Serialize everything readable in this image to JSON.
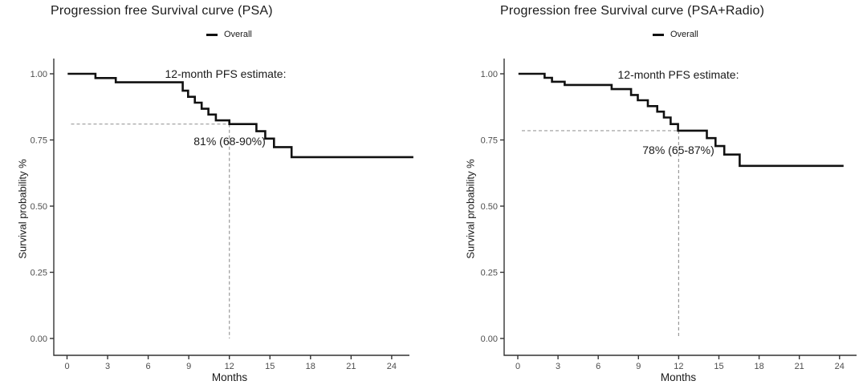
{
  "colors": {
    "curve": "#111111",
    "reference_dash": "#9a9a9a",
    "axis": "#333333",
    "tick_label": "#4d4d4d",
    "text": "#1a1a1a"
  },
  "chart_data": [
    {
      "type": "line",
      "step": true,
      "title": "Progression free Survival curve (PSA)",
      "legend": [
        {
          "label": "Overall",
          "color": "#111111"
        }
      ],
      "xlabel": "Months",
      "ylabel": "Survival probability %",
      "x_ticks": [
        0,
        3,
        6,
        9,
        12,
        15,
        18,
        21,
        24
      ],
      "y_ticks": [
        {
          "label": "0.00",
          "value": 0
        },
        {
          "label": "0.25",
          "value": 0.25
        },
        {
          "label": "0.50",
          "value": 0.5
        },
        {
          "label": "0.75",
          "value": 0.75
        },
        {
          "label": "1.00",
          "value": 1
        }
      ],
      "xlim": [
        0,
        24
      ],
      "ylim": [
        0,
        1
      ],
      "grid": false,
      "legend_position": "top",
      "annotation": {
        "line1": "12-month PFS estimate:",
        "line2": "81% (68-90%)"
      },
      "reference": {
        "x": 12,
        "y": 0.81
      },
      "series": [
        {
          "name": "Overall",
          "steps": [
            [
              0.05,
              1.0
            ],
            [
              2.1,
              0.984
            ],
            [
              3.6,
              0.968
            ],
            [
              8.55,
              0.936
            ],
            [
              8.95,
              0.913
            ],
            [
              9.45,
              0.891
            ],
            [
              9.95,
              0.868
            ],
            [
              10.45,
              0.846
            ],
            [
              11.0,
              0.824
            ],
            [
              12.0,
              0.81
            ],
            [
              14.0,
              0.783
            ],
            [
              14.65,
              0.755
            ],
            [
              15.3,
              0.723
            ],
            [
              16.6,
              0.685
            ],
            [
              25.6,
              0.685
            ]
          ]
        }
      ]
    },
    {
      "type": "line",
      "step": true,
      "title": "Progression free Survival curve (PSA+Radio)",
      "legend": [
        {
          "label": "Overall",
          "color": "#111111"
        }
      ],
      "xlabel": "Months",
      "ylabel": "Survival probability %",
      "x_ticks": [
        0,
        3,
        6,
        9,
        12,
        15,
        18,
        21,
        24
      ],
      "y_ticks": [
        {
          "label": "0.00",
          "value": 0
        },
        {
          "label": "0.25",
          "value": 0.25
        },
        {
          "label": "0.50",
          "value": 0.5
        },
        {
          "label": "0.75",
          "value": 0.75
        },
        {
          "label": "1.00",
          "value": 1
        }
      ],
      "xlim": [
        0,
        24
      ],
      "ylim": [
        0,
        1
      ],
      "grid": false,
      "legend_position": "top",
      "annotation": {
        "line1": "12-month PFS estimate:",
        "line2": "78% (65-87%)"
      },
      "reference": {
        "x": 12,
        "y": 0.785
      },
      "series": [
        {
          "name": "Overall",
          "steps": [
            [
              0.05,
              1.0
            ],
            [
              2.0,
              0.985
            ],
            [
              2.55,
              0.97
            ],
            [
              3.5,
              0.958
            ],
            [
              7.0,
              0.942
            ],
            [
              8.45,
              0.92
            ],
            [
              8.95,
              0.9
            ],
            [
              9.7,
              0.878
            ],
            [
              10.4,
              0.857
            ],
            [
              10.9,
              0.835
            ],
            [
              11.4,
              0.81
            ],
            [
              11.95,
              0.785
            ],
            [
              14.1,
              0.757
            ],
            [
              14.75,
              0.727
            ],
            [
              15.4,
              0.695
            ],
            [
              16.55,
              0.652
            ],
            [
              24.3,
              0.652
            ]
          ]
        }
      ]
    }
  ]
}
